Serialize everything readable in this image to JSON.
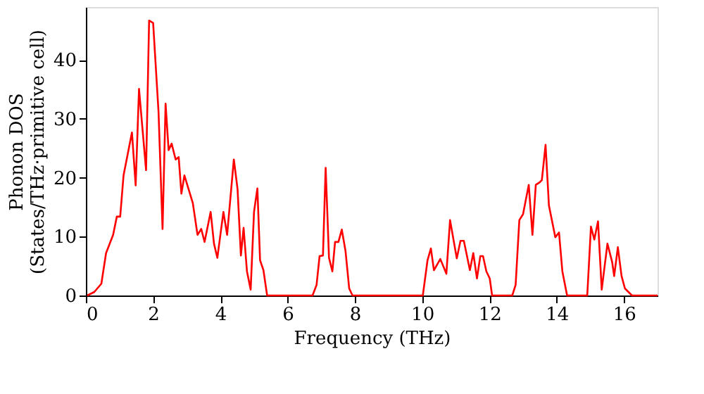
{
  "chart_data": {
    "type": "line",
    "xlabel": "Frequency (THz)",
    "ylabel": "Phonon DOS\n(States/THz·primitive cell)",
    "xlim": [
      0,
      17
    ],
    "ylim": [
      0,
      49
    ],
    "xticks": [
      0,
      2,
      4,
      6,
      8,
      10,
      12,
      14,
      16
    ],
    "yticks": [
      0,
      10,
      20,
      30,
      40
    ],
    "grid": false,
    "series": [
      {
        "color": "#ff0000",
        "x": [
          0.04,
          0.25,
          0.46,
          0.6,
          0.81,
          0.92,
          1.02,
          1.12,
          1.37,
          1.48,
          1.58,
          1.79,
          1.88,
          2.0,
          2.16,
          2.28,
          2.37,
          2.46,
          2.55,
          2.67,
          2.76,
          2.84,
          2.93,
          3.18,
          3.32,
          3.43,
          3.53,
          3.71,
          3.81,
          3.91,
          4.09,
          4.2,
          4.4,
          4.51,
          4.61,
          4.69,
          4.79,
          4.9,
          5.0,
          5.1,
          5.18,
          5.28,
          5.39,
          6.74,
          6.86,
          6.95,
          7.05,
          7.13,
          7.23,
          7.33,
          7.41,
          7.51,
          7.61,
          7.72,
          7.83,
          7.93,
          10.02,
          10.16,
          10.26,
          10.35,
          10.54,
          10.72,
          10.83,
          11.03,
          11.14,
          11.24,
          11.42,
          11.52,
          11.63,
          11.73,
          11.81,
          11.91,
          12.01,
          12.08,
          12.68,
          12.78,
          12.89,
          13.0,
          13.17,
          13.28,
          13.38,
          13.49,
          13.56,
          13.67,
          13.77,
          13.96,
          14.07,
          14.17,
          14.31,
          14.91,
          15.02,
          15.12,
          15.23,
          15.34,
          15.51,
          15.65,
          15.71,
          15.82,
          15.93,
          16.03,
          16.24,
          17.0
        ],
        "values": [
          0,
          0.6,
          2.0,
          7.2,
          10.3,
          13.4,
          13.4,
          20.4,
          27.7,
          18.7,
          35.1,
          21.3,
          46.7,
          46.3,
          31.2,
          11.3,
          32.6,
          24.7,
          25.8,
          23.1,
          23.5,
          17.3,
          20.4,
          15.7,
          10.3,
          11.3,
          9.1,
          14.2,
          8.8,
          6.4,
          14.2,
          10.3,
          23.1,
          18.1,
          6.8,
          11.5,
          4.1,
          1.0,
          14.2,
          18.2,
          6.0,
          4.3,
          0,
          0,
          1.8,
          6.7,
          6.8,
          21.7,
          6.4,
          4.1,
          9.1,
          9.1,
          11.2,
          7.6,
          1.2,
          0,
          0,
          6.0,
          8.0,
          4.3,
          6.2,
          3.7,
          12.8,
          6.3,
          9.3,
          9.3,
          4.3,
          7.2,
          2.9,
          6.7,
          6.7,
          4.1,
          2.9,
          0,
          0,
          1.8,
          12.8,
          13.8,
          18.8,
          10.3,
          18.8,
          19.2,
          19.6,
          25.6,
          15.3,
          9.9,
          10.7,
          4.1,
          0,
          0,
          11.7,
          9.5,
          12.6,
          1.0,
          8.8,
          5.7,
          3.3,
          8.2,
          3.3,
          1.2,
          0,
          0
        ]
      }
    ]
  }
}
